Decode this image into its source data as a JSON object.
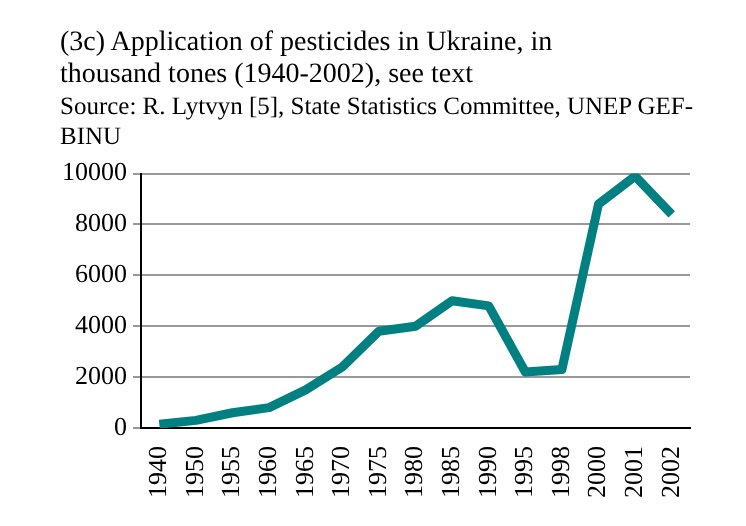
{
  "chart_data": {
    "type": "line",
    "title": "(3c) Application of pesticides in Ukraine, in thousand tones (1940-2002), see text",
    "annotations": [
      "Source: R. Lytvyn [5], State Statistics Committee, UNEP GEF-BINU"
    ],
    "categories": [
      "1940",
      "1950",
      "1955",
      "1960",
      "1965",
      "1970",
      "1975",
      "1980",
      "1985",
      "1990",
      "1995",
      "1998",
      "2000",
      "2001",
      "2002"
    ],
    "series": [
      {
        "color": "#008080",
        "values": [
          150,
          300,
          600,
          800,
          1500,
          2400,
          3800,
          4000,
          5000,
          4800,
          2200,
          2300,
          8800,
          9900,
          8400
        ]
      }
    ],
    "ylim": [
      0,
      10000
    ],
    "yticks": [
      0,
      2000,
      4000,
      6000,
      8000,
      10000
    ],
    "grid": "y",
    "legend": false,
    "marker": "none",
    "line_style": "solid"
  }
}
